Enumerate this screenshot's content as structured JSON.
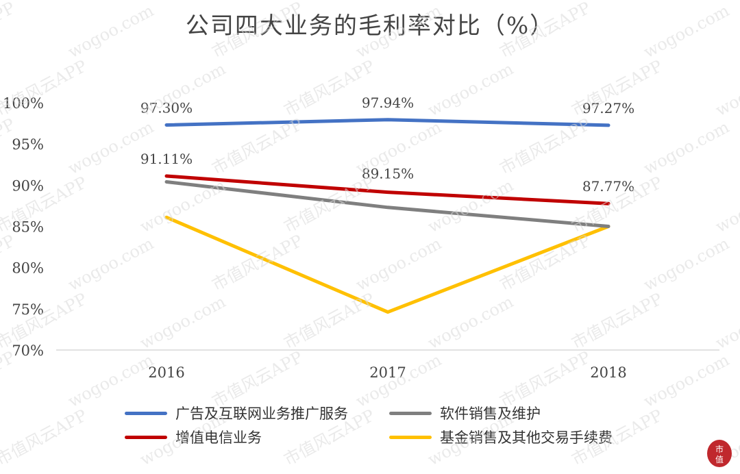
{
  "chart_data": {
    "type": "line",
    "title": "公司四大业务的毛利率对比（%）",
    "categories": [
      "2016",
      "2017",
      "2018"
    ],
    "ylim": [
      70,
      100
    ],
    "yticks": [
      "70%",
      "75%",
      "80%",
      "85%",
      "90%",
      "95%",
      "100%"
    ],
    "grid": false,
    "legend_position": "bottom",
    "series": [
      {
        "name": "广告及互联网业务推广服务",
        "values": [
          97.3,
          97.94,
          97.27
        ],
        "labels": [
          "97.30%",
          "97.94%",
          "97.27%"
        ],
        "color": "#4472C4"
      },
      {
        "name": "软件销售及维护",
        "values": [
          90.4,
          87.3,
          85.0
        ],
        "labels": [],
        "color": "#7F7F7F"
      },
      {
        "name": "增值电信业务",
        "values": [
          91.11,
          89.15,
          87.77
        ],
        "labels": [
          "91.11%",
          "89.15%",
          "87.77%"
        ],
        "color": "#C00000"
      },
      {
        "name": "基金销售及其他交易手续费",
        "values": [
          86.1,
          74.6,
          85.0
        ],
        "labels": [],
        "color": "#FFC000"
      }
    ]
  },
  "watermark": {
    "texts": [
      "市值风云APP",
      "wogoo.com"
    ],
    "color": "#d8d8d8"
  },
  "logo": {
    "text": "市值",
    "icon": "fengyun-seal-icon",
    "color": "#c0282d"
  }
}
